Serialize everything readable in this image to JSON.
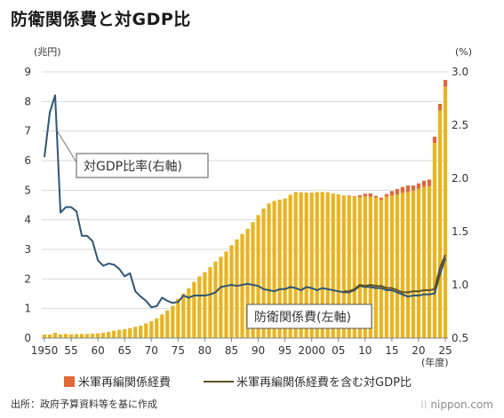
{
  "title": "防衛関係費と対GDP比",
  "source": "出所：政府予算資料等を基に作成",
  "logo": "nippon.com",
  "colors": {
    "defense_bar": "#E8B420",
    "usfj_bar": "#E0693A",
    "gdp_ratio_line": "#2F5673",
    "gdp_ratio_incl_line": "#5F4F22",
    "grid": "#D9D9D9"
  },
  "chart_data": {
    "type": "bar",
    "left_axis": {
      "unit": "(兆円)",
      "ylim": [
        0,
        9
      ],
      "ticks": [
        "0",
        "1",
        "2",
        "3",
        "4",
        "5",
        "6",
        "7",
        "8",
        "9"
      ]
    },
    "right_axis": {
      "unit": "(%)",
      "ylim": [
        0.5,
        3.0
      ],
      "ticks": [
        "0.5",
        "1.0",
        "1.5",
        "2.0",
        "2.5",
        "3.0"
      ]
    },
    "x_axis": {
      "unit": "(年度)",
      "tick_years": [
        1950,
        1955,
        1960,
        1965,
        1970,
        1975,
        1980,
        1985,
        1990,
        1995,
        2000,
        2005,
        2010,
        2015,
        2020,
        2025
      ],
      "tick_labels": [
        "1950",
        "55",
        "60",
        "65",
        "70",
        "75",
        "80",
        "85",
        "90",
        "95",
        "2000",
        "05",
        "10",
        "15",
        "20",
        "25"
      ]
    },
    "annotations": {
      "ratio_callout": "対GDP比率(右軸)",
      "defense_callout": "防衛関係費(左軸)"
    },
    "legend": [
      {
        "key": "usfj",
        "label": "米軍再編関係経費"
      },
      {
        "key": "ratio_incl",
        "label": "米軍再編関係経費を含む対GDP比"
      }
    ],
    "years": [
      1950,
      1951,
      1952,
      1953,
      1954,
      1955,
      1956,
      1957,
      1958,
      1959,
      1960,
      1961,
      1962,
      1963,
      1964,
      1965,
      1966,
      1967,
      1968,
      1969,
      1970,
      1971,
      1972,
      1973,
      1974,
      1975,
      1976,
      1977,
      1978,
      1979,
      1980,
      1981,
      1982,
      1983,
      1984,
      1985,
      1986,
      1987,
      1988,
      1989,
      1990,
      1991,
      1992,
      1993,
      1994,
      1995,
      1996,
      1997,
      1998,
      1999,
      2000,
      2001,
      2002,
      2003,
      2004,
      2005,
      2006,
      2007,
      2008,
      2009,
      2010,
      2011,
      2012,
      2013,
      2014,
      2015,
      2016,
      2017,
      2018,
      2019,
      2020,
      2021,
      2022,
      2023,
      2024,
      2025
    ],
    "defense_budget": [
      0.12,
      0.12,
      0.18,
      0.13,
      0.14,
      0.13,
      0.14,
      0.14,
      0.14,
      0.15,
      0.16,
      0.18,
      0.21,
      0.25,
      0.28,
      0.3,
      0.34,
      0.38,
      0.42,
      0.5,
      0.57,
      0.67,
      0.8,
      0.94,
      1.09,
      1.33,
      1.51,
      1.69,
      1.9,
      2.09,
      2.23,
      2.4,
      2.59,
      2.75,
      2.93,
      3.14,
      3.34,
      3.52,
      3.7,
      3.92,
      4.16,
      4.38,
      4.55,
      4.64,
      4.68,
      4.72,
      4.85,
      4.94,
      4.93,
      4.92,
      4.92,
      4.94,
      4.94,
      4.93,
      4.89,
      4.86,
      4.81,
      4.8,
      4.78,
      4.77,
      4.79,
      4.78,
      4.75,
      4.68,
      4.78,
      4.82,
      4.86,
      4.91,
      4.94,
      4.99,
      5.05,
      5.11,
      5.14,
      6.6,
      7.7,
      8.5
    ],
    "usfj_costs": [
      0,
      0,
      0,
      0,
      0,
      0,
      0,
      0,
      0,
      0,
      0,
      0,
      0,
      0,
      0,
      0,
      0,
      0,
      0,
      0,
      0,
      0,
      0,
      0,
      0,
      0,
      0,
      0,
      0,
      0,
      0,
      0,
      0,
      0,
      0,
      0,
      0,
      0,
      0,
      0,
      0,
      0,
      0,
      0,
      0,
      0,
      0,
      0,
      0,
      0,
      0,
      0,
      0,
      0,
      0,
      0,
      0.01,
      0.02,
      0.02,
      0.06,
      0.09,
      0.11,
      0.06,
      0.07,
      0.09,
      0.15,
      0.18,
      0.2,
      0.22,
      0.17,
      0.18,
      0.21,
      0.22,
      0.21,
      0.22,
      0.23
    ],
    "gdp_ratio": [
      2.2,
      2.62,
      2.78,
      1.68,
      1.73,
      1.73,
      1.69,
      1.46,
      1.46,
      1.41,
      1.23,
      1.18,
      1.2,
      1.19,
      1.15,
      1.08,
      1.11,
      0.94,
      0.89,
      0.85,
      0.79,
      0.8,
      0.88,
      0.85,
      0.83,
      0.84,
      0.9,
      0.88,
      0.9,
      0.9,
      0.9,
      0.91,
      0.93,
      0.98,
      0.99,
      1.0,
      0.99,
      1.0,
      1.01,
      1.0,
      0.99,
      0.96,
      0.95,
      0.94,
      0.96,
      0.96,
      0.98,
      0.97,
      0.95,
      0.98,
      0.97,
      0.95,
      0.97,
      0.96,
      0.95,
      0.94,
      0.93,
      0.93,
      0.95,
      0.99,
      0.98,
      0.98,
      0.97,
      0.97,
      0.95,
      0.95,
      0.93,
      0.91,
      0.89,
      0.9,
      0.9,
      0.91,
      0.91,
      0.92,
      1.1,
      1.25
    ],
    "gdp_ratio_incl": [
      null,
      null,
      null,
      null,
      null,
      null,
      null,
      null,
      null,
      null,
      null,
      null,
      null,
      null,
      null,
      null,
      null,
      null,
      null,
      null,
      null,
      null,
      null,
      null,
      null,
      null,
      null,
      null,
      null,
      null,
      null,
      null,
      null,
      null,
      null,
      null,
      null,
      null,
      null,
      null,
      null,
      null,
      null,
      null,
      null,
      null,
      null,
      null,
      null,
      null,
      null,
      null,
      null,
      null,
      null,
      null,
      0.94,
      0.94,
      0.96,
      1.0,
      0.99,
      1.0,
      0.99,
      0.99,
      0.97,
      0.97,
      0.95,
      0.93,
      0.93,
      0.94,
      0.94,
      0.95,
      0.95,
      0.96,
      1.16,
      1.28
    ]
  }
}
